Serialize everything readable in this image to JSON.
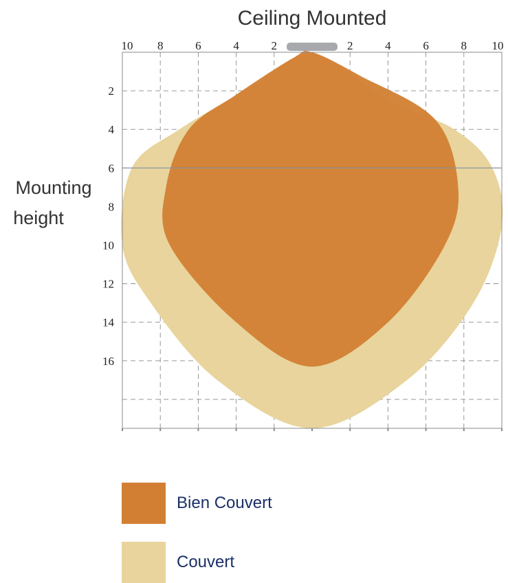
{
  "chart_data": {
    "type": "area",
    "title": "Ceiling Mounted",
    "ylabel": "Mounting height",
    "x_ticks": [
      "10",
      "8",
      "6",
      "4",
      "2",
      "2",
      "4",
      "6",
      "8",
      "10"
    ],
    "y_ticks": [
      "2",
      "4",
      "6",
      "8",
      "10",
      "12",
      "14",
      "16"
    ],
    "xlim": [
      -10,
      10
    ],
    "ylim": [
      0,
      19.5
    ],
    "grid": true,
    "legend_placement": "bottom",
    "series": [
      {
        "name": "Couvert",
        "color": "#e8d49c",
        "x": [
          0,
          4,
          7.5,
          9.5,
          10,
          8.5,
          5,
          0,
          -5,
          -8.5,
          -10,
          -9.5,
          -7,
          -3.5,
          0
        ],
        "y": [
          0.1,
          2.5,
          4,
          6,
          9,
          13,
          17,
          19.5,
          17,
          13,
          10,
          6,
          4,
          2,
          0.1
        ]
      },
      {
        "name": "Bien Couvert",
        "color": "#d27f33",
        "x": [
          0,
          2.5,
          6.5,
          7.7,
          7,
          4,
          0,
          -4,
          -7.5,
          -7.7,
          -6.5,
          -4,
          -1,
          0
        ],
        "y": [
          0,
          1.2,
          3.5,
          7,
          10,
          14,
          16.3,
          14,
          10,
          7,
          4,
          2.2,
          0.3,
          0
        ]
      }
    ]
  },
  "legend": {
    "items": [
      {
        "label": "Bien Couvert",
        "color": "#d27f33"
      },
      {
        "label": "Couvert",
        "color": "#e8d49c"
      }
    ]
  }
}
